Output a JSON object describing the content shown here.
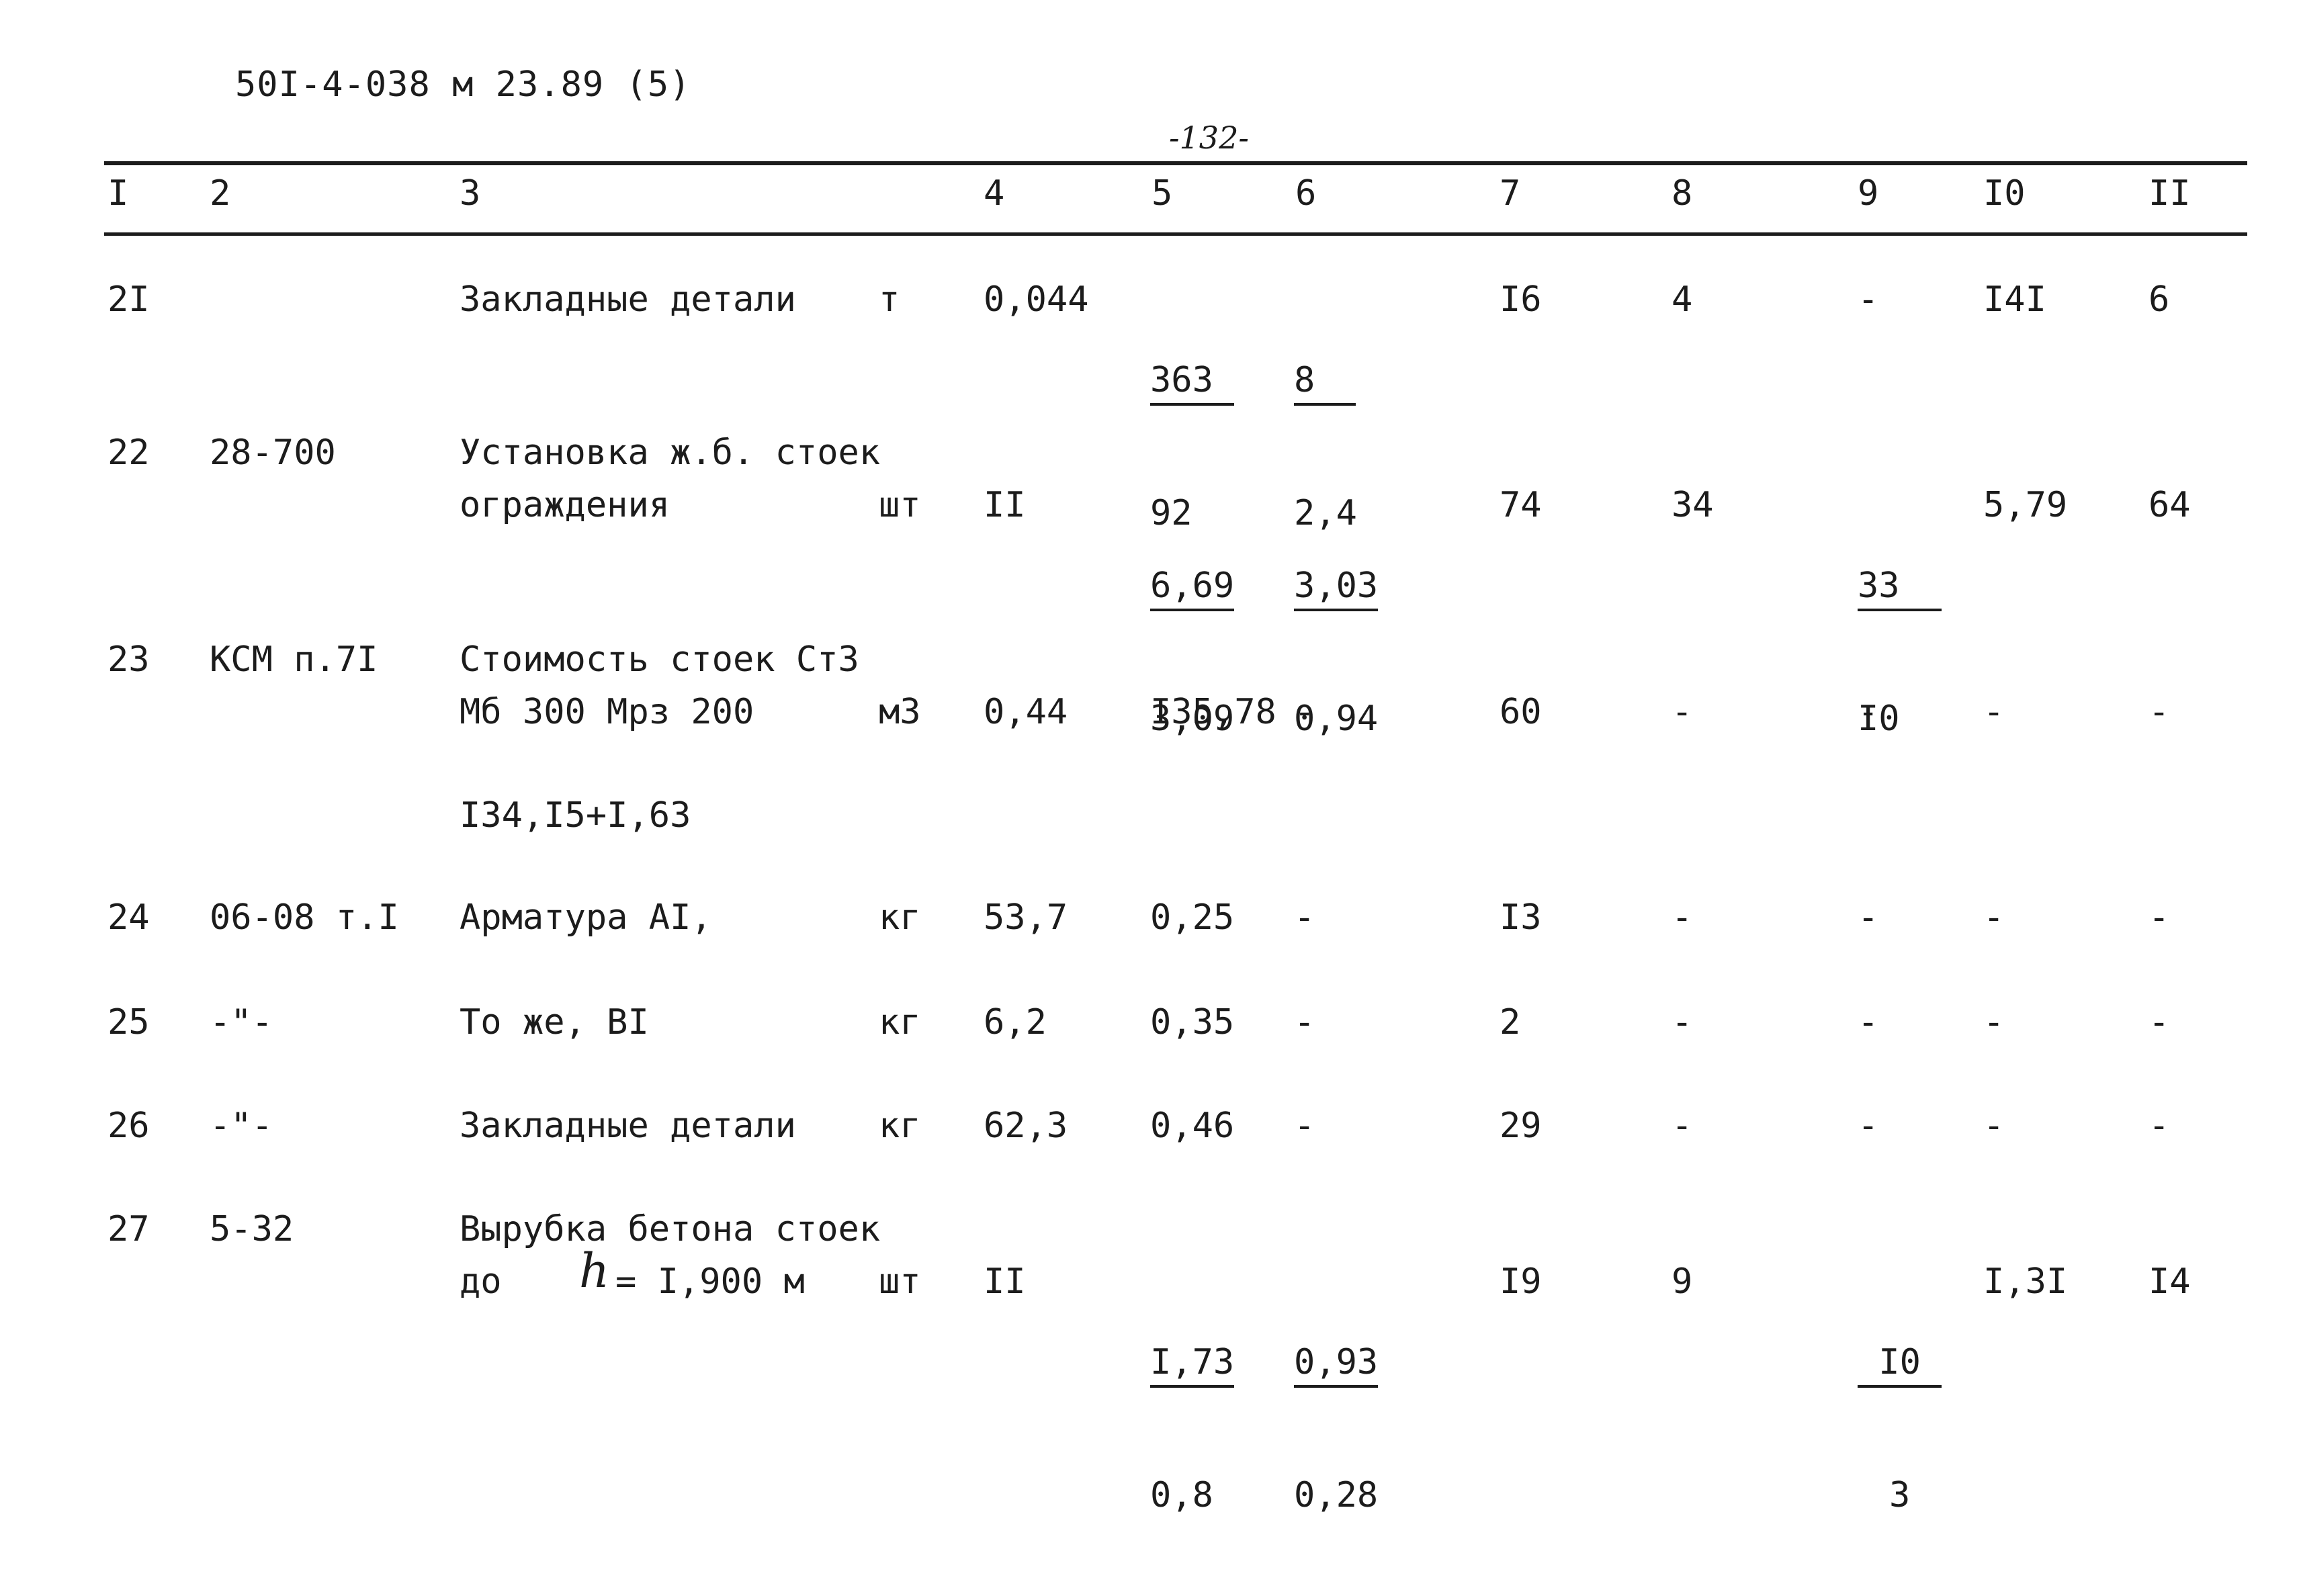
{
  "header": {
    "doc_code": "50I-4-038 м 23.89 (5)",
    "page_number": "-132-"
  },
  "columns": [
    "I",
    "2",
    "3",
    "4",
    "5",
    "6",
    "7",
    "8",
    "9",
    "I0",
    "II"
  ],
  "rows": [
    {
      "n": "2I",
      "code": "",
      "name": [
        "Закладные детали"
      ],
      "unit": "т",
      "qty": "0,044",
      "c5": {
        "top": "363",
        "bot": "92"
      },
      "c6": {
        "top": "8",
        "bot": "2,4"
      },
      "c7": "I6",
      "c8": "4",
      "c9": "-",
      "c10": "I4I",
      "c11": "6"
    },
    {
      "n": "22",
      "code": "28-700",
      "name": [
        "Установка ж.б. стоек",
        "ограждения"
      ],
      "unit": "шт",
      "qty": "II",
      "c5": {
        "top": "6,69",
        "bot": "3,09"
      },
      "c6": {
        "top": "3,03",
        "bot": "0,94"
      },
      "c7": "74",
      "c8": "34",
      "c9": {
        "top": "33",
        "bot": "I0"
      },
      "c10": "5,79",
      "c11": "64"
    },
    {
      "n": "23",
      "code": "КСМ п.7I",
      "name": [
        "Стоимость стоек Ст3",
        "Мб 300 Мрз 200"
      ],
      "unit": "м3",
      "qty": "0,44",
      "c5": "I35,78",
      "c6": "-",
      "c7": "60",
      "c8": "-",
      "c9": "-",
      "c10": "-",
      "c11": "-",
      "note": "I34,I5+I,63"
    },
    {
      "n": "24",
      "code": "06-08 т.I",
      "name": [
        "Арматура AI,"
      ],
      "unit": "кг",
      "qty": "53,7",
      "c5": "0,25",
      "c6": "-",
      "c7": "I3",
      "c8": "-",
      "c9": "-",
      "c10": "-",
      "c11": "-"
    },
    {
      "n": "25",
      "code": "-\"-",
      "name": [
        "То же, BI"
      ],
      "unit": "кг",
      "qty": "6,2",
      "c5": "0,35",
      "c6": "-",
      "c7": "2",
      "c8": "-",
      "c9": "-",
      "c10": "-",
      "c11": "-"
    },
    {
      "n": "26",
      "code": "-\"-",
      "name": [
        "Закладные детали"
      ],
      "unit": "кг",
      "qty": "62,3",
      "c5": "0,46",
      "c6": "-",
      "c7": "29",
      "c8": "-",
      "c9": "-",
      "c10": "-",
      "c11": "-"
    },
    {
      "n": "27",
      "code": "5-32",
      "name": [
        "Вырубка бетона стоек",
        "до",
        "h",
        "= I,900 м"
      ],
      "unit": "шт",
      "qty": "II",
      "c5": {
        "top": "I,73",
        "bot": "0,8"
      },
      "c6": {
        "top": "0,93",
        "bot": "0,28"
      },
      "c7": "I9",
      "c8": "9",
      "c9": {
        "top": "I0",
        "bot": "3"
      },
      "c10": "I,3I",
      "c11": "I4"
    }
  ]
}
